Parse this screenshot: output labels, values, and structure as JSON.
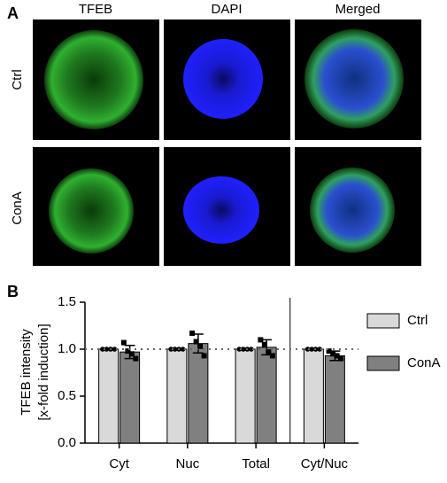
{
  "panel_a": {
    "label": "A",
    "columns": [
      "TFEB",
      "DAPI",
      "Merged"
    ],
    "rows": [
      "Ctrl",
      "ConA"
    ]
  },
  "chart_data": {
    "type": "bar",
    "panel_label": "B",
    "ylabel": [
      "TFEB intensity",
      "[x-fold induction]"
    ],
    "categories": [
      "Cyt",
      "Nuc",
      "Total",
      "Cyt/Nuc"
    ],
    "series": [
      {
        "name": "Ctrl",
        "color": "#d9d9d9",
        "values": [
          1.0,
          1.0,
          1.0,
          1.0
        ],
        "errors": [
          0,
          0,
          0,
          0
        ],
        "points": [
          [
            1.0,
            1.0,
            1.0,
            1.0
          ],
          [
            1.0,
            1.0,
            1.0,
            1.0
          ],
          [
            1.0,
            1.0,
            1.0,
            1.0
          ],
          [
            1.0,
            1.0,
            1.0,
            1.0
          ]
        ]
      },
      {
        "name": "ConA",
        "color": "#808080",
        "values": [
          0.97,
          1.06,
          1.02,
          0.93
        ],
        "errors": [
          0.07,
          0.1,
          0.08,
          0.05
        ],
        "points": [
          [
            1.07,
            0.98,
            0.95,
            0.9
          ],
          [
            1.17,
            1.08,
            1.03,
            0.93
          ],
          [
            1.1,
            1.05,
            0.97,
            0.93
          ],
          [
            0.98,
            0.95,
            0.93,
            0.9
          ]
        ]
      }
    ],
    "reference_line": 1,
    "ylim": [
      0,
      1.5
    ],
    "yticks": [
      {
        "value": 0,
        "label": "0.0"
      },
      0.5,
      {
        "value": 1,
        "label": "1.0"
      },
      1.5
    ]
  }
}
